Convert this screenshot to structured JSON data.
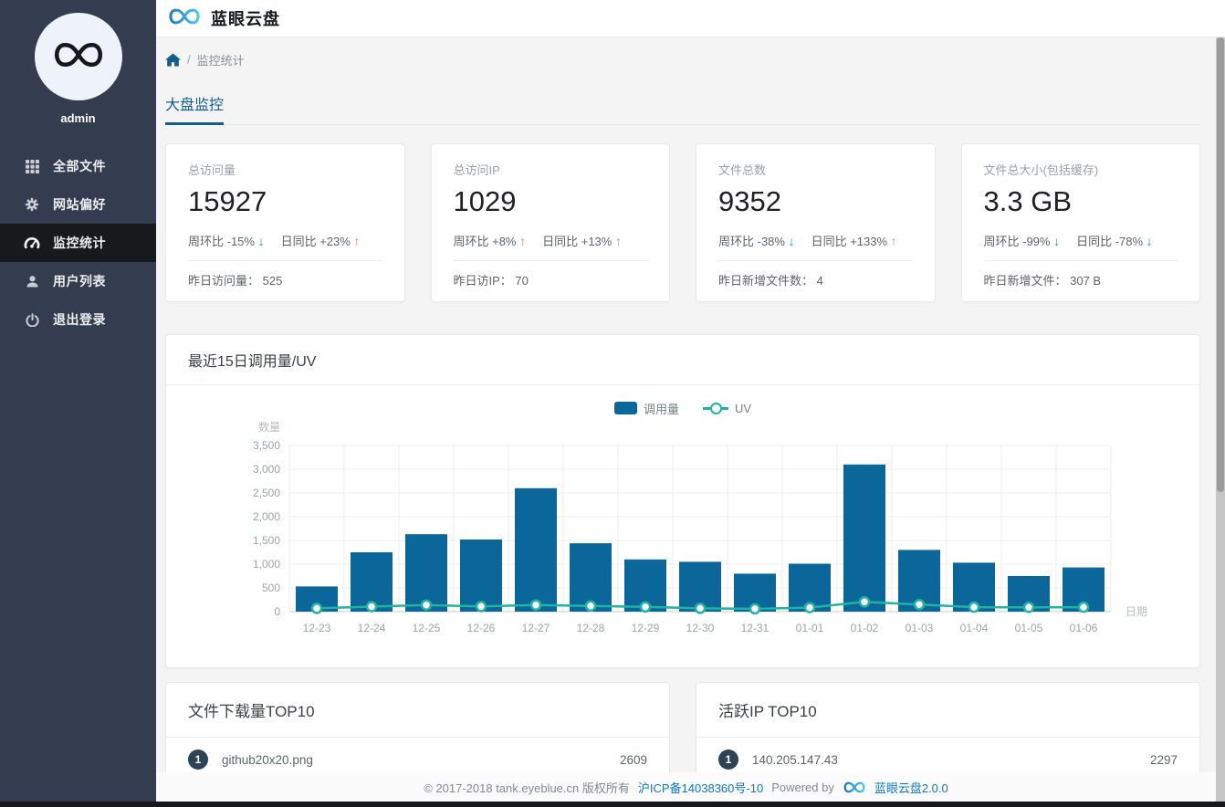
{
  "colors": {
    "sidebar_bg": "#343d4f",
    "sidebar_active_bg": "#17191d",
    "accent_blue": "#135e8e",
    "bar": "#0b6699",
    "line": "#21b3a2",
    "arrow_up": "#f3825f",
    "arrow_down": "#00b27f",
    "link_blue": "#1478be",
    "badge_bg": "#2e4354"
  },
  "header": {
    "title": "蓝眼云盘"
  },
  "sidebar": {
    "username": "admin",
    "items": [
      {
        "label": "全部文件",
        "icon": "grid-icon",
        "active": false
      },
      {
        "label": "网站偏好",
        "icon": "gear-icon",
        "active": false
      },
      {
        "label": "监控统计",
        "icon": "dashboard-icon",
        "active": true
      },
      {
        "label": "用户列表",
        "icon": "user-icon",
        "active": false
      },
      {
        "label": "退出登录",
        "icon": "power-icon",
        "active": false
      }
    ]
  },
  "breadcrumb": {
    "separator": "/",
    "current": "监控统计"
  },
  "tabs": [
    {
      "label": "大盘监控",
      "active": true
    }
  ],
  "stat_cards": [
    {
      "label": "总访问量",
      "value": "15927",
      "trends": [
        {
          "name": "周环比",
          "value": "-15%",
          "dir": "down"
        },
        {
          "name": "日同比",
          "value": "+23%",
          "dir": "up"
        }
      ],
      "footer": "昨日访问量： 525"
    },
    {
      "label": "总访问IP",
      "value": "1029",
      "trends": [
        {
          "name": "周环比",
          "value": "+8%",
          "dir": "up"
        },
        {
          "name": "日同比",
          "value": "+13%",
          "dir": "up"
        }
      ],
      "footer": "昨日访IP： 70"
    },
    {
      "label": "文件总数",
      "value": "9352",
      "trends": [
        {
          "name": "周环比",
          "value": "-38%",
          "dir": "down"
        },
        {
          "name": "日同比",
          "value": "+133%",
          "dir": "up"
        }
      ],
      "footer": "昨日新增文件数： 4"
    },
    {
      "label": "文件总大小(包括缓存)",
      "value": "3.3 GB",
      "trends": [
        {
          "name": "周环比",
          "value": "-99%",
          "dir": "down"
        },
        {
          "name": "日同比",
          "value": "-78%",
          "dir": "down"
        }
      ],
      "footer": "昨日新增文件： 307 B"
    }
  ],
  "chart_panel": {
    "title": "最近15日调用量/UV"
  },
  "chart_data": {
    "type": "bar+line",
    "title": "最近15日调用量/UV",
    "categories": [
      "12-23",
      "12-24",
      "12-25",
      "12-26",
      "12-27",
      "12-28",
      "12-29",
      "12-30",
      "12-31",
      "01-01",
      "01-02",
      "01-03",
      "01-04",
      "01-05",
      "01-06"
    ],
    "series": [
      {
        "name": "调用量",
        "type": "bar",
        "values": [
          530,
          1250,
          1630,
          1520,
          2600,
          1440,
          1100,
          1050,
          800,
          1010,
          3100,
          1300,
          1030,
          750,
          930
        ]
      },
      {
        "name": "UV",
        "type": "line",
        "values": [
          70,
          105,
          140,
          110,
          140,
          120,
          100,
          70,
          60,
          85,
          205,
          150,
          95,
          90,
          95
        ]
      }
    ],
    "ylabel": "数量",
    "xlabel": "日期",
    "ylim": [
      0,
      3500
    ],
    "yticks": [
      "0",
      "500",
      "1,000",
      "1,500",
      "2,000",
      "2,500",
      "3,000",
      "3,500"
    ],
    "grid": true,
    "legend_position": "top-center"
  },
  "top_lists": [
    {
      "title": "文件下载量TOP10",
      "rows": [
        {
          "rank": "1",
          "name": "github20x20.png",
          "value": "2609"
        }
      ]
    },
    {
      "title": "活跃IP TOP10",
      "rows": [
        {
          "rank": "1",
          "name": "140.205.147.43",
          "value": "2297"
        }
      ]
    }
  ],
  "footer": {
    "copyright": "© 2017-2018 tank.eyeblue.cn 版权所有",
    "icp_link": "沪ICP备14038360号-10",
    "powered_by": "Powered by",
    "product_link": "蓝眼云盘2.0.0"
  }
}
